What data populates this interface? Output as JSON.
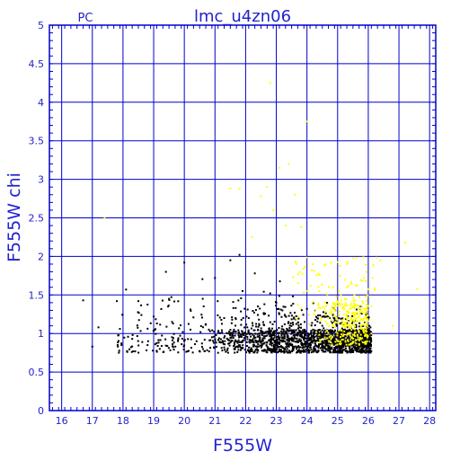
{
  "chart_data": {
    "type": "scatter",
    "title": "lmc_u4zn06",
    "corner_label": "PC",
    "xlabel": "F555W",
    "ylabel": "F555W  chi",
    "xlim": [
      15.6,
      28.2
    ],
    "ylim": [
      0,
      5
    ],
    "x_ticks": [
      "16",
      "17",
      "18",
      "19",
      "20",
      "21",
      "22",
      "23",
      "24",
      "25",
      "26",
      "27",
      "28"
    ],
    "y_ticks": [
      "0",
      "0.5",
      "1",
      "1.5",
      "2",
      "2.5",
      "3",
      "3.5",
      "4",
      "4.5",
      "5"
    ],
    "grid": true,
    "colors": {
      "axis": "#0000cc",
      "text": "#2222cc",
      "black_points": "#000000",
      "yellow_points": "#ffff00"
    },
    "series": [
      {
        "color": "black",
        "sampled": true,
        "points": [
          [
            16.7,
            1.43
          ],
          [
            17.0,
            0.83
          ],
          [
            17.2,
            1.08
          ],
          [
            17.8,
            1.42
          ],
          [
            17.9,
            1.06
          ],
          [
            18.1,
            1.57
          ],
          [
            18.3,
            0.93
          ],
          [
            18.5,
            1.42
          ],
          [
            18.6,
            1.24
          ],
          [
            18.8,
            0.85
          ],
          [
            19.0,
            1.22
          ],
          [
            19.2,
            0.8
          ],
          [
            19.4,
            1.8
          ],
          [
            19.5,
            1.45
          ],
          [
            19.6,
            1.15
          ],
          [
            19.8,
            0.92
          ],
          [
            20.0,
            1.92
          ],
          [
            20.2,
            1.05
          ],
          [
            20.4,
            0.9
          ],
          [
            20.6,
            1.45
          ],
          [
            20.8,
            1.05
          ],
          [
            21.0,
            1.72
          ],
          [
            21.1,
            0.75
          ],
          [
            21.3,
            1.2
          ],
          [
            21.5,
            1.95
          ],
          [
            21.6,
            1.33
          ],
          [
            21.8,
            2.02
          ],
          [
            21.9,
            1.55
          ],
          [
            22.1,
            1.2
          ],
          [
            22.3,
            1.78
          ],
          [
            22.4,
            1.05
          ],
          [
            22.6,
            1.25
          ],
          [
            22.8,
            1.52
          ],
          [
            23.0,
            1.4
          ],
          [
            23.2,
            1.3
          ],
          [
            23.4,
            1.15
          ],
          [
            23.6,
            1.27
          ],
          [
            23.8,
            1.12
          ],
          [
            24.0,
            1.32
          ],
          [
            24.2,
            1.05
          ],
          [
            24.5,
            1.1
          ],
          [
            24.8,
            1.02
          ],
          [
            25.1,
            0.98
          ],
          [
            25.4,
            1.05
          ],
          [
            25.7,
            0.95
          ],
          [
            26.0,
            0.88
          ]
        ],
        "band": {
          "x": [
            20.6,
            26.1
          ],
          "y": [
            0.75,
            1.05
          ]
        }
      },
      {
        "color": "yellow",
        "sampled": true,
        "points": [
          [
            17.4,
            2.5
          ],
          [
            21.5,
            2.88
          ],
          [
            21.8,
            2.88
          ],
          [
            22.2,
            2.25
          ],
          [
            22.5,
            2.78
          ],
          [
            22.7,
            2.9
          ],
          [
            22.9,
            2.6
          ],
          [
            23.1,
            3.15
          ],
          [
            23.3,
            2.4
          ],
          [
            23.6,
            2.8
          ],
          [
            23.8,
            2.38
          ],
          [
            24.0,
            3.75
          ],
          [
            24.2,
            1.9
          ],
          [
            24.4,
            1.55
          ],
          [
            24.7,
            1.2
          ],
          [
            25.0,
            1.4
          ],
          [
            25.3,
            1.6
          ],
          [
            25.6,
            1.15
          ],
          [
            25.9,
            1.3
          ],
          [
            26.1,
            1.0
          ],
          [
            26.4,
            1.95
          ],
          [
            26.8,
            1.1
          ],
          [
            27.2,
            2.18
          ],
          [
            27.6,
            1.58
          ],
          [
            22.8,
            4.25
          ],
          [
            23.4,
            3.2
          ]
        ],
        "band": {
          "x": [
            24.2,
            26.0
          ],
          "y": [
            0.85,
            1.4
          ]
        }
      }
    ]
  }
}
